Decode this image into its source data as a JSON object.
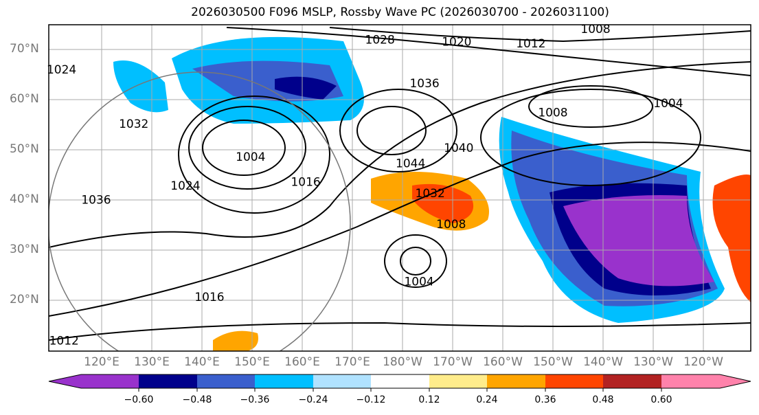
{
  "title": "2026030500 F096 MSLP, Rossby Wave PC (2026030700 - 2026031100)",
  "lat_labels": [
    {
      "lat": 70,
      "text": "70°N"
    },
    {
      "lat": 60,
      "text": "60°N"
    },
    {
      "lat": 50,
      "text": "50°N"
    },
    {
      "lat": 40,
      "text": "40°N"
    },
    {
      "lat": 30,
      "text": "30°N"
    },
    {
      "lat": 20,
      "text": "20°N"
    }
  ],
  "lon_labels": [
    {
      "lon": 120,
      "text": "120°E"
    },
    {
      "lon": 130,
      "text": "130°E"
    },
    {
      "lon": 140,
      "text": "140°E"
    },
    {
      "lon": 150,
      "text": "150°E"
    },
    {
      "lon": 160,
      "text": "160°E"
    },
    {
      "lon": 170,
      "text": "170°E"
    },
    {
      "lon": 180,
      "text": "180°W"
    },
    {
      "lon": 190,
      "text": "170°W"
    },
    {
      "lon": 200,
      "text": "160°W"
    },
    {
      "lon": 210,
      "text": "150°W"
    },
    {
      "lon": 220,
      "text": "140°W"
    },
    {
      "lon": 230,
      "text": "130°W"
    },
    {
      "lon": 240,
      "text": "120°W"
    }
  ],
  "contour_labels": [
    {
      "text": "1008",
      "lon": 218.5,
      "lat": 74.1
    },
    {
      "text": "1028",
      "lon": 175.5,
      "lat": 72
    },
    {
      "text": "1020",
      "lon": 190.8,
      "lat": 71.6
    },
    {
      "text": "1012",
      "lon": 205.6,
      "lat": 71.2
    },
    {
      "text": "1024",
      "lon": 112,
      "lat": 66
    },
    {
      "text": "1036",
      "lon": 184.4,
      "lat": 63.3
    },
    {
      "text": "1004",
      "lon": 233,
      "lat": 59.3
    },
    {
      "text": "1008",
      "lon": 210,
      "lat": 57.5
    },
    {
      "text": "1032",
      "lon": 126.4,
      "lat": 55.2
    },
    {
      "text": "1040",
      "lon": 191.2,
      "lat": 50.4
    },
    {
      "text": "1004",
      "lon": 149.7,
      "lat": 48.6
    },
    {
      "text": "1044",
      "lon": 181.6,
      "lat": 47.3
    },
    {
      "text": "1024",
      "lon": 136.7,
      "lat": 42.9
    },
    {
      "text": "1036",
      "lon": 118.9,
      "lat": 40.1
    },
    {
      "text": "1016",
      "lon": 160.7,
      "lat": 43.6
    },
    {
      "text": "1032",
      "lon": 185.5,
      "lat": 41.4
    },
    {
      "text": "1008",
      "lon": 189.7,
      "lat": 35.2
    },
    {
      "text": "1004",
      "lon": 183.3,
      "lat": 23.8
    },
    {
      "text": "1016",
      "lon": 141.5,
      "lat": 20.7
    },
    {
      "text": "1012",
      "lon": 112.5,
      "lat": 12
    }
  ],
  "colorbar": {
    "colors": [
      "#9932cc",
      "#00008b",
      "#3a5fcd",
      "#00bfff",
      "#b0e2ff",
      "#ffffff",
      "#ffec8b",
      "#ffa500",
      "#ff4500",
      "#b22222",
      "#ff82ab"
    ],
    "ticks": [
      "−0.60",
      "−0.48",
      "−0.36",
      "−0.24",
      "−0.12",
      "0.12",
      "0.24",
      "0.36",
      "0.48",
      "0.60"
    ]
  }
}
